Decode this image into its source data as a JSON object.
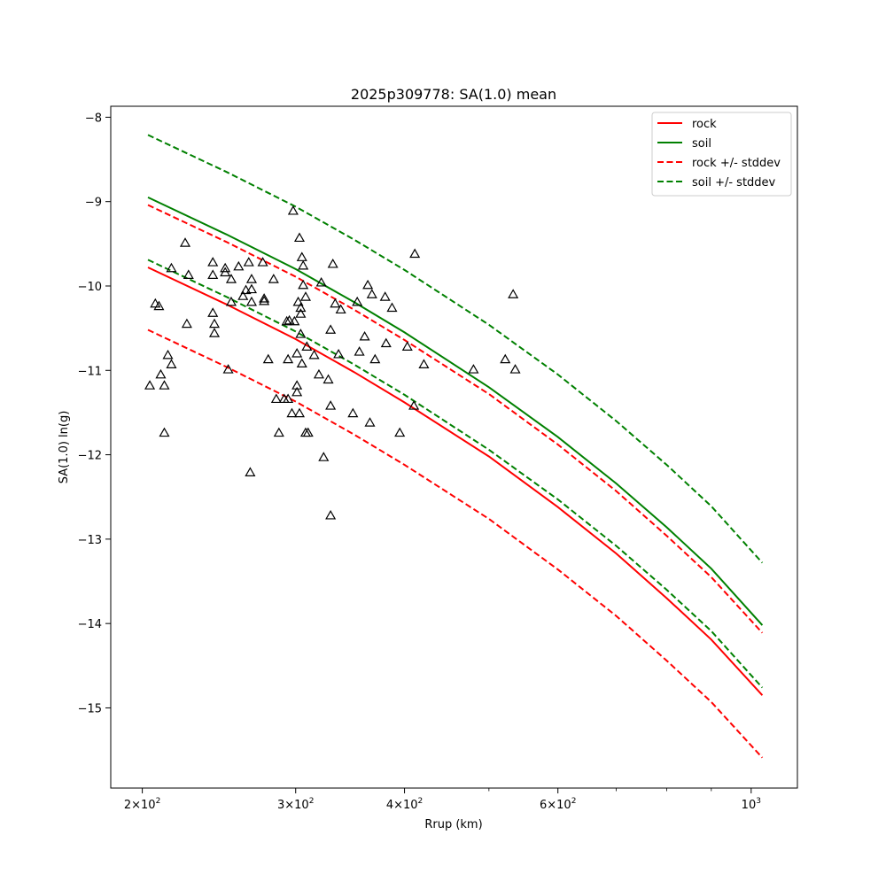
{
  "chart_data": {
    "type": "line",
    "title": "2025p309778: SA(1.0) mean",
    "xlabel": "Rrup (km)",
    "ylabel": "SA(1.0) ln(g)",
    "x_scale": "log",
    "xlim": [
      184,
      1130
    ],
    "ylim": [
      -15.95,
      -7.87
    ],
    "grid": false,
    "legend_position": "top-right",
    "x_major_ticks": [
      {
        "value": 200,
        "base": "2",
        "exp": "2"
      },
      {
        "value": 300,
        "base": "3",
        "exp": "2"
      },
      {
        "value": 400,
        "base": "4",
        "exp": "2"
      },
      {
        "value": 600,
        "base": "6",
        "exp": "2"
      },
      {
        "value": 1000,
        "base": "",
        "exp": "3"
      }
    ],
    "x_minor_ticks": [
      500,
      700,
      800,
      900
    ],
    "y_ticks": [
      {
        "value": -8,
        "label": "−8"
      },
      {
        "value": -9,
        "label": "−9"
      },
      {
        "value": -10,
        "label": "−10"
      },
      {
        "value": -11,
        "label": "−11"
      },
      {
        "value": -12,
        "label": "−12"
      },
      {
        "value": -13,
        "label": "−13"
      },
      {
        "value": -14,
        "label": "−14"
      },
      {
        "value": -15,
        "label": "−15"
      }
    ],
    "series": [
      {
        "name": "rock",
        "color": "#ff0000",
        "dash": "solid",
        "x": [
          203,
          250,
          300,
          350,
          400,
          500,
          600,
          700,
          800,
          900,
          1030
        ],
        "y": [
          -9.78,
          -10.22,
          -10.63,
          -11.02,
          -11.38,
          -12.02,
          -12.62,
          -13.17,
          -13.7,
          -14.19,
          -14.85
        ]
      },
      {
        "name": "soil",
        "color": "#008000",
        "dash": "solid",
        "x": [
          203,
          250,
          300,
          350,
          400,
          500,
          600,
          700,
          800,
          900,
          1030
        ],
        "y": [
          -8.95,
          -9.39,
          -9.8,
          -10.19,
          -10.55,
          -11.2,
          -11.79,
          -12.34,
          -12.86,
          -13.35,
          -14.02
        ]
      },
      {
        "name": "rock +/- stddev",
        "color": "#ff0000",
        "dash": "dashed",
        "x": [
          203,
          250,
          300,
          350,
          400,
          500,
          600,
          700,
          800,
          900,
          1030
        ],
        "y": [
          -9.04,
          -9.48,
          -9.89,
          -10.28,
          -10.64,
          -11.28,
          -11.88,
          -12.43,
          -12.96,
          -13.45,
          -14.11
        ]
      },
      {
        "name": "",
        "color": "#ff0000",
        "dash": "dashed",
        "x": [
          203,
          250,
          300,
          350,
          400,
          500,
          600,
          700,
          800,
          900,
          1030
        ],
        "y": [
          -10.52,
          -10.96,
          -11.37,
          -11.76,
          -12.12,
          -12.76,
          -13.36,
          -13.91,
          -14.44,
          -14.93,
          -15.59
        ]
      },
      {
        "name": "soil +/- stddev",
        "color": "#008000",
        "dash": "dashed",
        "x": [
          203,
          250,
          300,
          350,
          400,
          500,
          600,
          700,
          800,
          900,
          1030
        ],
        "y": [
          -8.21,
          -8.65,
          -9.06,
          -9.45,
          -9.81,
          -10.46,
          -11.05,
          -11.6,
          -12.12,
          -12.61,
          -13.28
        ]
      },
      {
        "name": "",
        "color": "#008000",
        "dash": "dashed",
        "x": [
          203,
          250,
          300,
          350,
          400,
          500,
          600,
          700,
          800,
          900,
          1030
        ],
        "y": [
          -9.69,
          -10.13,
          -10.54,
          -10.93,
          -11.29,
          -11.94,
          -12.53,
          -13.08,
          -13.6,
          -14.09,
          -14.76
        ]
      }
    ],
    "scatter": {
      "marker": "triangle-open",
      "color": "#000000",
      "points": [
        [
          204,
          -11.18
        ],
        [
          207,
          -10.21
        ],
        [
          209,
          -10.24
        ],
        [
          210,
          -11.05
        ],
        [
          212,
          -11.18
        ],
        [
          212,
          -11.74
        ],
        [
          214,
          -10.82
        ],
        [
          216,
          -9.79
        ],
        [
          216,
          -10.93
        ],
        [
          224,
          -9.49
        ],
        [
          225,
          -10.45
        ],
        [
          226,
          -9.87
        ],
        [
          241,
          -9.72
        ],
        [
          241,
          -9.87
        ],
        [
          241,
          -10.32
        ],
        [
          242,
          -10.45
        ],
        [
          242,
          -10.56
        ],
        [
          249,
          -9.79
        ],
        [
          249,
          -9.84
        ],
        [
          251,
          -10.99
        ],
        [
          253,
          -9.92
        ],
        [
          253,
          -10.19
        ],
        [
          258,
          -9.77
        ],
        [
          261,
          -10.12
        ],
        [
          263,
          -10.05
        ],
        [
          265,
          -9.72
        ],
        [
          266,
          -12.21
        ],
        [
          267,
          -9.92
        ],
        [
          267,
          -10.04
        ],
        [
          267,
          -10.19
        ],
        [
          275,
          -9.72
        ],
        [
          276,
          -10.18
        ],
        [
          276,
          -10.15
        ],
        [
          279,
          -10.87
        ],
        [
          283,
          -9.92
        ],
        [
          285,
          -11.34
        ],
        [
          287,
          -11.74
        ],
        [
          291,
          -11.34
        ],
        [
          293,
          -10.42
        ],
        [
          294,
          -10.87
        ],
        [
          294,
          -11.34
        ],
        [
          295,
          -10.41
        ],
        [
          297,
          -11.51
        ],
        [
          298,
          -9.11
        ],
        [
          299,
          -10.42
        ],
        [
          301,
          -10.8
        ],
        [
          301,
          -11.18
        ],
        [
          301,
          -11.26
        ],
        [
          302,
          -10.19
        ],
        [
          303,
          -11.51
        ],
        [
          303,
          -9.43
        ],
        [
          304,
          -10.57
        ],
        [
          304,
          -10.26
        ],
        [
          304,
          -10.33
        ],
        [
          305,
          -10.92
        ],
        [
          305,
          -9.66
        ],
        [
          306,
          -9.76
        ],
        [
          306,
          -9.99
        ],
        [
          308,
          -11.74
        ],
        [
          308,
          -10.13
        ],
        [
          309,
          -10.72
        ],
        [
          310,
          -11.74
        ],
        [
          315,
          -10.82
        ],
        [
          319,
          -11.05
        ],
        [
          321,
          -9.96
        ],
        [
          323,
          -12.03
        ],
        [
          327,
          -11.11
        ],
        [
          329,
          -12.72
        ],
        [
          329,
          -10.52
        ],
        [
          329,
          -11.42
        ],
        [
          331,
          -9.74
        ],
        [
          333,
          -10.21
        ],
        [
          336,
          -10.81
        ],
        [
          338,
          -10.28
        ],
        [
          349,
          -11.51
        ],
        [
          353,
          -10.19
        ],
        [
          355,
          -10.78
        ],
        [
          360,
          -10.6
        ],
        [
          363,
          -9.99
        ],
        [
          365,
          -11.62
        ],
        [
          367,
          -10.1
        ],
        [
          370,
          -10.87
        ],
        [
          380,
          -10.13
        ],
        [
          381,
          -10.68
        ],
        [
          387,
          -10.26
        ],
        [
          395,
          -11.74
        ],
        [
          403,
          -10.72
        ],
        [
          410,
          -11.42
        ],
        [
          411,
          -9.62
        ],
        [
          421,
          -10.93
        ],
        [
          480,
          -10.99
        ],
        [
          522,
          -10.87
        ],
        [
          533,
          -10.1
        ],
        [
          536,
          -10.99
        ]
      ]
    }
  }
}
